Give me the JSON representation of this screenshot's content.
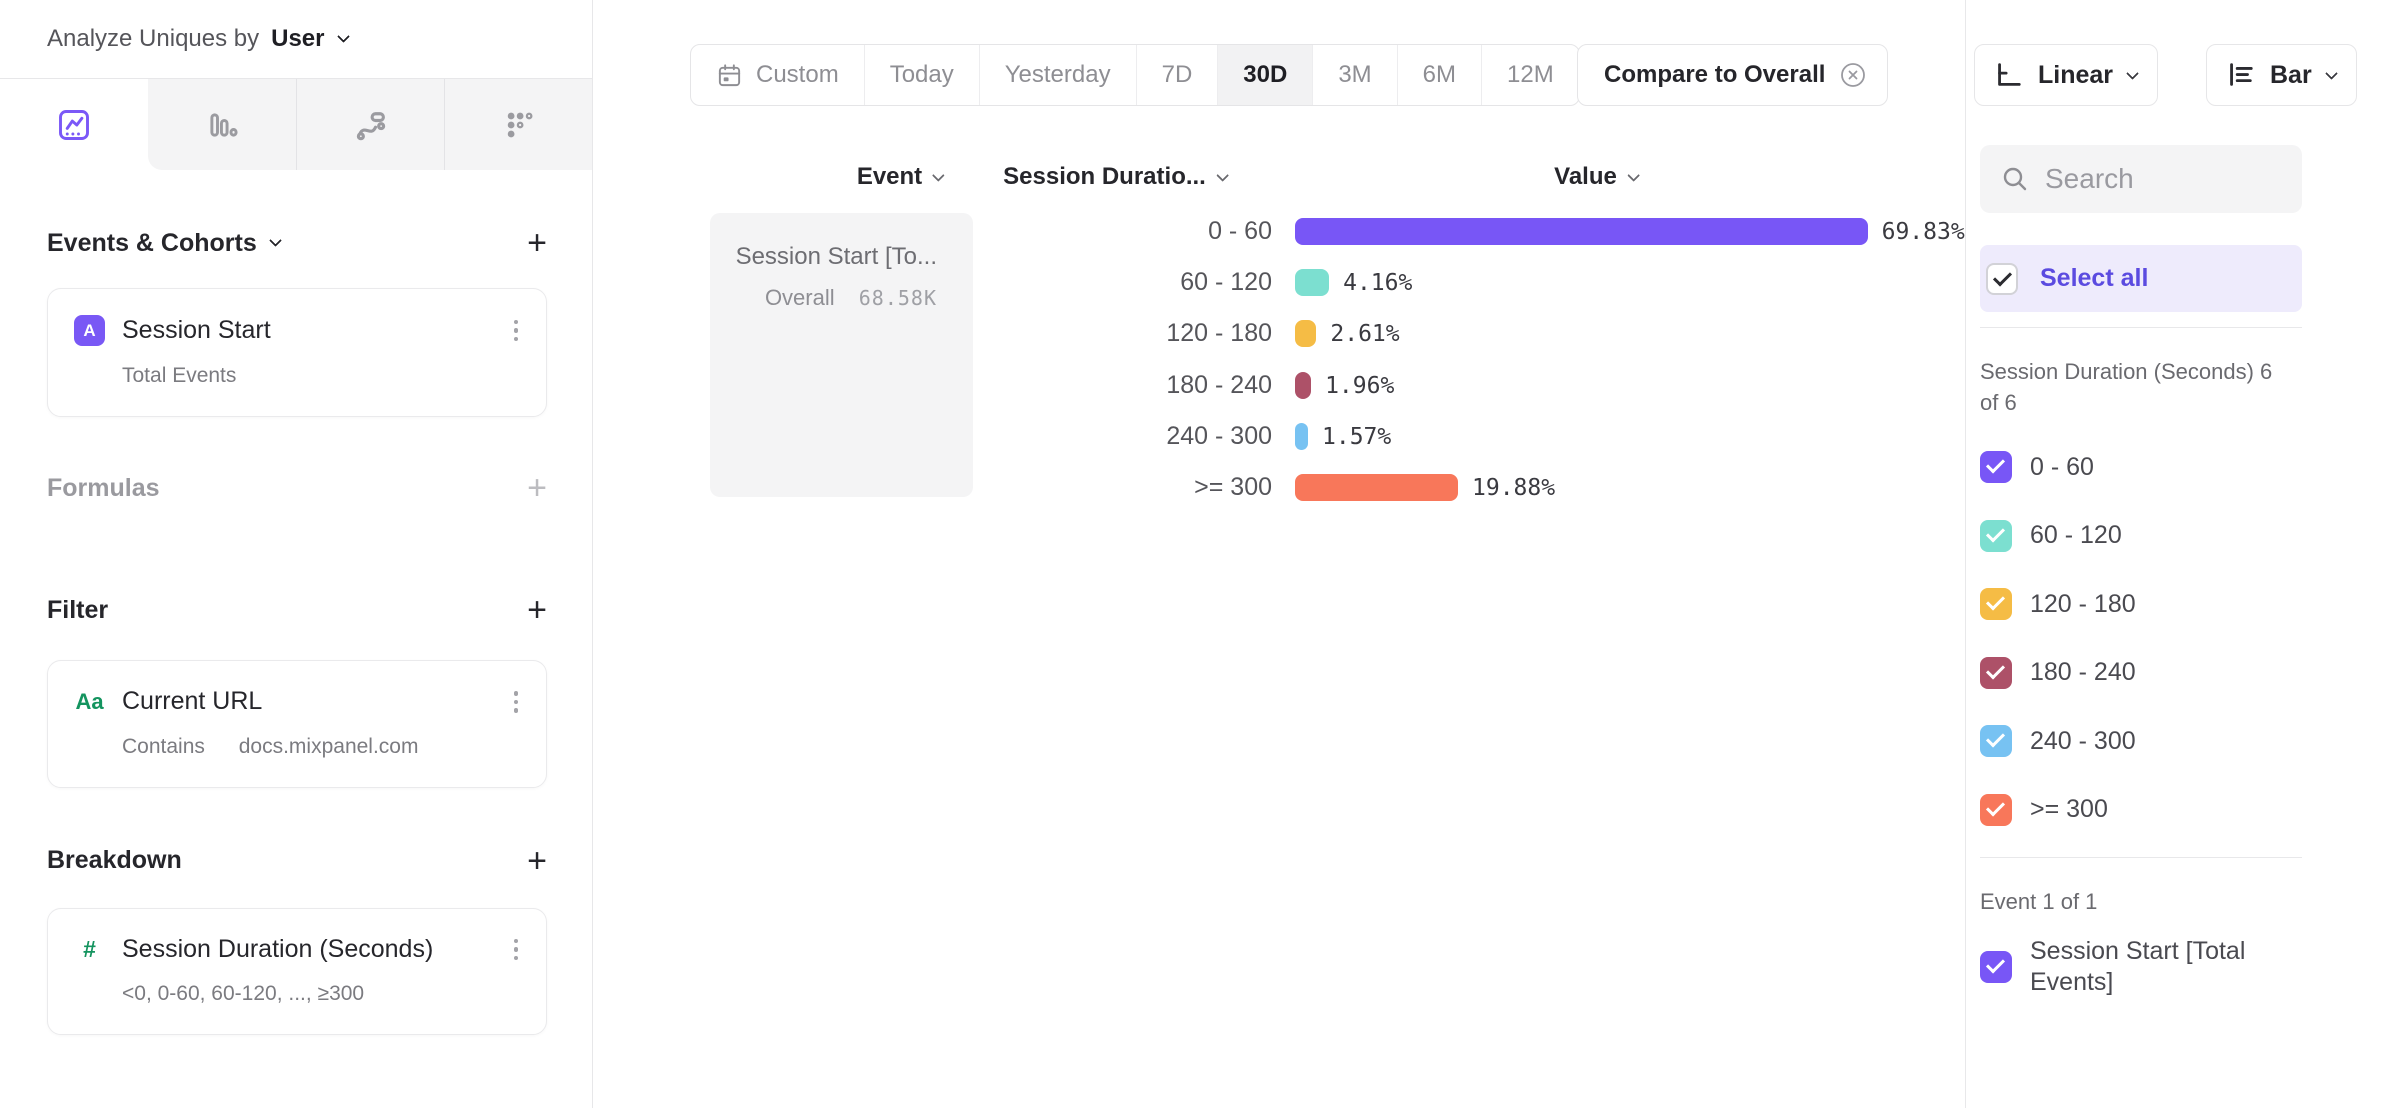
{
  "glyphs": {
    "plus": "+"
  },
  "colors": {
    "brand_purple": "#7856F6",
    "select_all_bg": "#eeebfc",
    "select_all_text": "#5b4be0",
    "green_badge": "#14945f"
  },
  "left_panel": {
    "header": {
      "label": "Analyze Uniques by",
      "value": "User"
    },
    "tabs": [
      {
        "icon": "insights-chart-icon",
        "active": true
      },
      {
        "icon": "bar-chart-icon",
        "active": false
      },
      {
        "icon": "flows-icon",
        "active": false
      },
      {
        "icon": "grid-dots-icon",
        "active": false
      }
    ],
    "events_section": {
      "title": "Events & Cohorts",
      "card": {
        "badge": "A",
        "title": "Session Start",
        "subtitle": "Total Events"
      }
    },
    "formulas_section": {
      "title": "Formulas"
    },
    "filter_section": {
      "title": "Filter",
      "card": {
        "badge": "Aa",
        "title": "Current URL",
        "operator": "Contains",
        "value": "docs.mixpanel.com"
      }
    },
    "breakdown_section": {
      "title": "Breakdown",
      "card": {
        "badge": "#",
        "title": "Session Duration (Seconds)",
        "subtitle": "<0, 0-60, 60-120, ..., ≥300"
      }
    }
  },
  "toolbar": {
    "date_ranges": [
      {
        "label": "Custom",
        "icon": "calendar-icon",
        "active": false
      },
      {
        "label": "Today",
        "active": false
      },
      {
        "label": "Yesterday",
        "active": false
      },
      {
        "label": "7D",
        "active": false
      },
      {
        "label": "30D",
        "active": true
      },
      {
        "label": "3M",
        "active": false
      },
      {
        "label": "6M",
        "active": false
      },
      {
        "label": "12M",
        "active": false
      }
    ],
    "compare_label": "Compare to Overall",
    "scale_button": "Linear",
    "chart_type_button": "Bar"
  },
  "chart": {
    "columns": {
      "event": "Event",
      "breakdown": "Session Duratio...",
      "value": "Value"
    },
    "event_cell": {
      "title": "Session Start [To...",
      "overall_label": "Overall",
      "overall_value": "68.58K"
    }
  },
  "chart_data": {
    "type": "bar",
    "orientation": "horizontal",
    "series_name": "Session Start [Total Events]",
    "overall_value": "68.58K",
    "categories": [
      "0 - 60",
      "60 - 120",
      "120 - 180",
      "180 - 240",
      "240 - 300",
      ">= 300"
    ],
    "values": [
      69.83,
      4.16,
      2.61,
      1.96,
      1.57,
      19.88
    ],
    "value_labels": [
      "69.83%",
      "4.16%",
      "2.61%",
      "1.96%",
      "1.57%",
      "19.88%"
    ],
    "colors": [
      "#7856F6",
      "#7CDFD0",
      "#F5BC45",
      "#AD5168",
      "#77C2F2",
      "#F8775A"
    ],
    "xlim": [
      0,
      100
    ],
    "unit": "%"
  },
  "right_panel": {
    "search_placeholder": "Search",
    "select_all_label": "Select all",
    "group_label": "Session Duration (Seconds) 6 of 6",
    "items": [
      {
        "label": "0 - 60",
        "color": "#7856F6",
        "checked": true
      },
      {
        "label": "60 - 120",
        "color": "#7CDFD0",
        "checked": true
      },
      {
        "label": "120 - 180",
        "color": "#F5BC45",
        "checked": true
      },
      {
        "label": "180 - 240",
        "color": "#AD5168",
        "checked": true
      },
      {
        "label": "240 - 300",
        "color": "#77C2F2",
        "checked": true
      },
      {
        "label": ">= 300",
        "color": "#F8775A",
        "checked": true
      }
    ],
    "event_group_label": "Event 1 of 1",
    "event_item": {
      "label": "Session Start [Total Events]",
      "color": "#7856F6",
      "checked": true
    }
  }
}
